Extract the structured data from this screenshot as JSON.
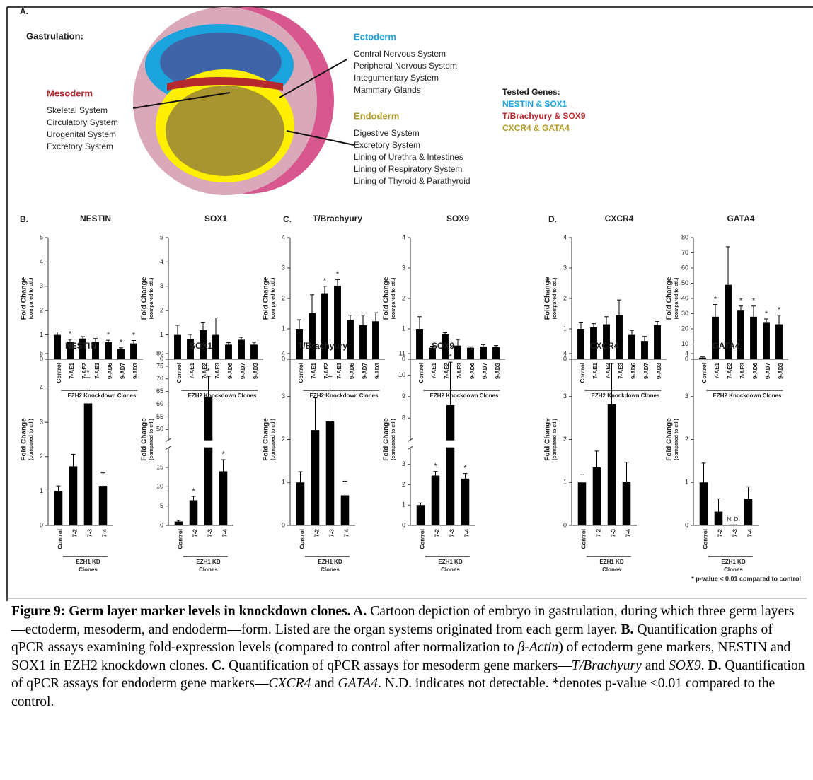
{
  "panel_a": {
    "label": "A.",
    "title": "Gastrulation:",
    "ectoderm": {
      "name": "Ectoderm",
      "color": "#1aa3dc",
      "systems": [
        "Central Nervous System",
        "Peripheral Nervous System",
        "Integumentary System",
        "Mammary Glands"
      ]
    },
    "mesoderm": {
      "name": "Mesoderm",
      "color": "#b5282e",
      "systems": [
        "Skeletal System",
        "Circulatory System",
        "Urogenital System",
        "Excretory System"
      ]
    },
    "endoderm": {
      "name": "Endoderm",
      "color": "#b39b2a",
      "systems": [
        "Digestive System",
        "Excretory System",
        "Lining of Urethra & Intestines",
        "Lining of Respiratory System",
        "Lining of Thyroid & Parathyroid"
      ]
    },
    "tested_genes": {
      "title": "Tested Genes:",
      "items": [
        {
          "text": "NESTIN & SOX1",
          "color": "#1aa3dc"
        },
        {
          "text": "T/Brachyury & SOX9",
          "color": "#b5282e"
        },
        {
          "text": "CXCR4 & GATA4",
          "color": "#b39b2a"
        }
      ]
    }
  },
  "panel_labels": [
    "B.",
    "C.",
    "D."
  ],
  "footnote": "* p-value < 0.01 compared to control",
  "chart_data": [
    {
      "type": "bar",
      "title": "NESTIN",
      "ylabel": "Fold Change",
      "ylabel_sub": "(compared to ctl.)",
      "color": "#000000",
      "categories": [
        "Control",
        "7-AE1",
        "7-AE2",
        "7-AE3",
        "9-AD6",
        "9-AD7",
        "9-AD3"
      ],
      "values": [
        1.0,
        0.72,
        0.85,
        0.7,
        0.7,
        0.42,
        0.65
      ],
      "errors": [
        0.12,
        0.1,
        0.08,
        0.15,
        0.08,
        0.05,
        0.12
      ],
      "markers": [
        null,
        "*",
        null,
        null,
        "*",
        "*",
        "*"
      ],
      "group_label": [
        "EZH2 Knockdown Clones"
      ],
      "ylim": [
        0,
        5
      ],
      "yticks": [
        0,
        1,
        2,
        3,
        4,
        5
      ]
    },
    {
      "type": "bar",
      "title": "SOX1",
      "ylabel": "Fold Change",
      "ylabel_sub": "(compared to ctl.)",
      "color": "#000000",
      "categories": [
        "Control",
        "7-AE1",
        "7-AE2",
        "7-AE3",
        "9-AD6",
        "9-AD7",
        "9-AD3"
      ],
      "values": [
        1.0,
        0.82,
        1.2,
        1.0,
        0.6,
        0.8,
        0.6
      ],
      "errors": [
        0.4,
        0.2,
        0.3,
        0.7,
        0.08,
        0.1,
        0.1
      ],
      "markers": [
        null,
        null,
        null,
        null,
        null,
        null,
        null
      ],
      "group_label": [
        "EZH2 Knockdown Clones"
      ],
      "ylim": [
        0,
        5
      ],
      "yticks": [
        0,
        1,
        2,
        3,
        4,
        5
      ]
    },
    {
      "type": "bar",
      "title": "T/Brachyury",
      "ylabel": "Fold Change",
      "ylabel_sub": "(compared to ctl.)",
      "color": "#000000",
      "categories": [
        "Control",
        "7-AE1",
        "7-AE2",
        "7-AE3",
        "9-AD6",
        "9-AD7",
        "9-AD3"
      ],
      "values": [
        1.0,
        1.52,
        2.15,
        2.42,
        1.3,
        1.12,
        1.25
      ],
      "errors": [
        0.3,
        0.6,
        0.25,
        0.2,
        0.15,
        0.33,
        0.28
      ],
      "markers": [
        null,
        null,
        "*",
        "*",
        null,
        null,
        null
      ],
      "group_label": [
        "EZH2 Knockdown Clones"
      ],
      "ylim": [
        0,
        4
      ],
      "yticks": [
        0,
        1,
        2,
        3,
        4
      ]
    },
    {
      "type": "bar",
      "title": "SOX9",
      "ylabel": "Fold Change",
      "ylabel_sub": "(compared to ctl.)",
      "color": "#000000",
      "categories": [
        "Control",
        "7-AE1",
        "7-AE2",
        "7-AE3",
        "9-AD6",
        "9-AD7",
        "9-AD3"
      ],
      "values": [
        1.0,
        0.38,
        0.82,
        0.45,
        0.38,
        0.42,
        0.4
      ],
      "errors": [
        0.4,
        0.05,
        0.05,
        0.2,
        0.03,
        0.06,
        0.05
      ],
      "markers": [
        null,
        null,
        null,
        null,
        null,
        null,
        null
      ],
      "group_label": [
        "EZH2 Knockdown Clones"
      ],
      "ylim": [
        0,
        4
      ],
      "yticks": [
        0,
        1,
        2,
        3,
        4
      ]
    },
    {
      "type": "bar",
      "title": "CXCR4",
      "ylabel": "Fold Change",
      "ylabel_sub": "(compared to ctl.)",
      "color": "#000000",
      "categories": [
        "Control",
        "7-AE1",
        "7-AE2",
        "7-AE3",
        "9-AD6",
        "9-AD7",
        "9-AD3"
      ],
      "values": [
        1.0,
        1.05,
        1.15,
        1.45,
        0.8,
        0.6,
        1.12
      ],
      "errors": [
        0.2,
        0.12,
        0.25,
        0.5,
        0.15,
        0.15,
        0.12
      ],
      "markers": [
        null,
        null,
        null,
        null,
        null,
        null,
        null
      ],
      "group_label": [
        "EZH2 Knockdown Clones"
      ],
      "ylim": [
        0,
        4
      ],
      "yticks": [
        0,
        1,
        2,
        3,
        4
      ]
    },
    {
      "type": "bar",
      "title": "GATA4",
      "ylabel": "Fold Change",
      "ylabel_sub": "(compared to ctl.)",
      "color": "#000000",
      "categories": [
        "Control",
        "7-AE1",
        "7-AE2",
        "7-AE3",
        "9-AD6",
        "9-AD7",
        "9-AD3"
      ],
      "values": [
        1,
        28,
        49,
        32,
        28,
        24,
        23
      ],
      "errors": [
        0.5,
        8,
        25,
        3,
        7,
        2.5,
        6
      ],
      "markers": [
        null,
        "*",
        null,
        "*",
        "*",
        "*",
        "*"
      ],
      "group_label": [
        "EZH2 Knockdown Clones"
      ],
      "ylim": [
        0,
        80
      ],
      "yticks": [
        0,
        10,
        20,
        30,
        40,
        50,
        60,
        70,
        80
      ]
    },
    {
      "type": "bar",
      "title": "NESTIN",
      "ylabel": "Fold Change",
      "ylabel_sub": "(compared to ctl.)",
      "color": "#000000",
      "categories": [
        "Control",
        "7-2",
        "7-3",
        "7-4"
      ],
      "values": [
        1.0,
        1.72,
        3.55,
        1.15
      ],
      "errors": [
        0.15,
        0.35,
        0.75,
        0.38
      ],
      "markers": [
        null,
        null,
        "*",
        null
      ],
      "group_label": [
        "EZH1 KD",
        "Clones"
      ],
      "ylim": [
        0,
        5
      ],
      "yticks": [
        0,
        1,
        2,
        3,
        4,
        5
      ]
    },
    {
      "type": "bar",
      "title": "SOX1",
      "ylabel": "Fold Change",
      "ylabel_sub": "(compared to ctl.)",
      "color": "#000000",
      "categories": [
        "Control",
        "7-2",
        "7-3",
        "7-4"
      ],
      "values": [
        1.0,
        6.5,
        63,
        14
      ],
      "errors": [
        0.3,
        1,
        8,
        3
      ],
      "markers": [
        null,
        "*",
        "*",
        "*"
      ],
      "group_label": [
        "EZH1 KD",
        "Clones"
      ],
      "ylim": [
        0,
        20
      ],
      "yticks": [
        0,
        5,
        10,
        15
      ],
      "break": {
        "ylim": [
          46,
          80
        ],
        "yticks": [
          50,
          55,
          60,
          65,
          70,
          75,
          80
        ]
      }
    },
    {
      "type": "bar",
      "title": "T/Brachyury",
      "ylabel": "Fold Change",
      "ylabel_sub": "(compared to ctl.)",
      "color": "#000000",
      "categories": [
        "Control",
        "7-2",
        "7-3",
        "7-4"
      ],
      "values": [
        1.0,
        2.22,
        2.42,
        0.7
      ],
      "errors": [
        0.25,
        0.75,
        1.05,
        0.33
      ],
      "markers": [
        null,
        null,
        null,
        null
      ],
      "group_label": [
        "EZH1 KD",
        "Clones"
      ],
      "ylim": [
        0,
        4
      ],
      "yticks": [
        0,
        1,
        2,
        3,
        4
      ]
    },
    {
      "type": "bar",
      "title": "SOX9",
      "ylabel": "Fold Change",
      "ylabel_sub": "(compared to ctl.)",
      "color": "#000000",
      "categories": [
        "Control",
        "7-2",
        "7-3",
        "7-4"
      ],
      "values": [
        1.0,
        2.45,
        8.6,
        2.3
      ],
      "errors": [
        0.1,
        0.2,
        2.0,
        0.25
      ],
      "markers": [
        null,
        "*",
        "*",
        "*"
      ],
      "group_label": [
        "EZH1 KD",
        "Clones"
      ],
      "ylim": [
        0,
        3.8
      ],
      "yticks": [
        0,
        1,
        2,
        3
      ],
      "break": {
        "ylim": [
          7,
          11
        ],
        "yticks": [
          8,
          9,
          10,
          11
        ]
      }
    },
    {
      "type": "bar",
      "title": "CXCR4",
      "ylabel": "Fold Change",
      "ylabel_sub": "(compared to ctl.)",
      "color": "#000000",
      "categories": [
        "Control",
        "7-2",
        "7-3",
        "7-4"
      ],
      "values": [
        1.0,
        1.35,
        2.82,
        1.02
      ],
      "errors": [
        0.18,
        0.38,
        0.95,
        0.45
      ],
      "markers": [
        null,
        null,
        null,
        null
      ],
      "group_label": [
        "EZH1 KD",
        "Clones"
      ],
      "ylim": [
        0,
        4
      ],
      "yticks": [
        0,
        1,
        2,
        3,
        4
      ]
    },
    {
      "type": "bar",
      "title": "GATA4",
      "ylabel": "Fold Change",
      "ylabel_sub": "(compared to ctl.)",
      "color": "#000000",
      "categories": [
        "Control",
        "7-2",
        "7-3",
        "7-4"
      ],
      "values": [
        1.0,
        0.32,
        0.02,
        0.62
      ],
      "errors": [
        0.45,
        0.3,
        null,
        0.28
      ],
      "markers": [
        null,
        null,
        "N. D.",
        null
      ],
      "group_label": [
        "EZH1 KD",
        "Clones"
      ],
      "ylim": [
        0,
        4
      ],
      "yticks": [
        0,
        1,
        2,
        3,
        4
      ]
    }
  ],
  "caption": [
    {
      "text": "Figure 9:  Germ layer marker levels in knockdown clones. A.",
      "style": "bold"
    },
    {
      "text": " Cartoon depiction of embryo in gastrulation, during which three germ layers—ectoderm, mesoderm, and endoderm—form.  Listed are the organ systems originated from each germ layer. "
    },
    {
      "text": "B.",
      "style": "bold"
    },
    {
      "text": " Quantification graphs of qPCR assays examining fold-expression levels (compared to control after normalization to "
    },
    {
      "text": "β-Actin",
      "style": "italic"
    },
    {
      "text": ") of ectoderm gene markers, NESTIN and SOX1 in EZH2 knockdown clones. "
    },
    {
      "text": "C.",
      "style": "bold"
    },
    {
      "text": " Quantification of qPCR assays for mesoderm gene markers—"
    },
    {
      "text": "T/Brachyury",
      "style": "italic"
    },
    {
      "text": " and "
    },
    {
      "text": "SOX9",
      "style": "italic"
    },
    {
      "text": ". "
    },
    {
      "text": "D.",
      "style": "bold"
    },
    {
      "text": " Quantification of qPCR assays for endoderm gene markers—"
    },
    {
      "text": "CXCR4",
      "style": "italic"
    },
    {
      "text": " and "
    },
    {
      "text": "GATA4",
      "style": "italic"
    },
    {
      "text": ". N.D. indicates not detectable.  *denotes p-value <0.01 compared to the control."
    }
  ]
}
